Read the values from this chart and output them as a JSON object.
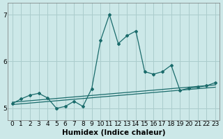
{
  "xlabel": "Humidex (Indice chaleur)",
  "background_color": "#cce8e8",
  "grid_color": "#aacccc",
  "line_color": "#1a6b6b",
  "x_data": [
    0,
    1,
    2,
    3,
    4,
    5,
    6,
    7,
    8,
    9,
    10,
    11,
    12,
    13,
    14,
    15,
    16,
    17,
    18,
    19,
    20,
    21,
    22,
    23
  ],
  "y_main": [
    5.1,
    5.2,
    5.28,
    5.32,
    5.22,
    5.0,
    5.04,
    5.15,
    5.04,
    5.42,
    6.45,
    7.0,
    6.38,
    6.55,
    6.65,
    5.78,
    5.73,
    5.78,
    5.92,
    5.38,
    5.43,
    5.45,
    5.48,
    5.55
  ],
  "trend1_x": [
    0,
    23
  ],
  "trend1_y": [
    5.08,
    5.45
  ],
  "trend2_x": [
    0,
    23
  ],
  "trend2_y": [
    5.13,
    5.5
  ],
  "ylim": [
    4.75,
    7.25
  ],
  "xlim": [
    -0.5,
    23.5
  ],
  "yticks": [
    5,
    6,
    7
  ],
  "xticks": [
    0,
    1,
    2,
    3,
    4,
    5,
    6,
    7,
    8,
    9,
    10,
    11,
    12,
    13,
    14,
    15,
    16,
    17,
    18,
    19,
    20,
    21,
    22,
    23
  ],
  "tick_fontsize": 6.5,
  "xlabel_fontsize": 7.5
}
